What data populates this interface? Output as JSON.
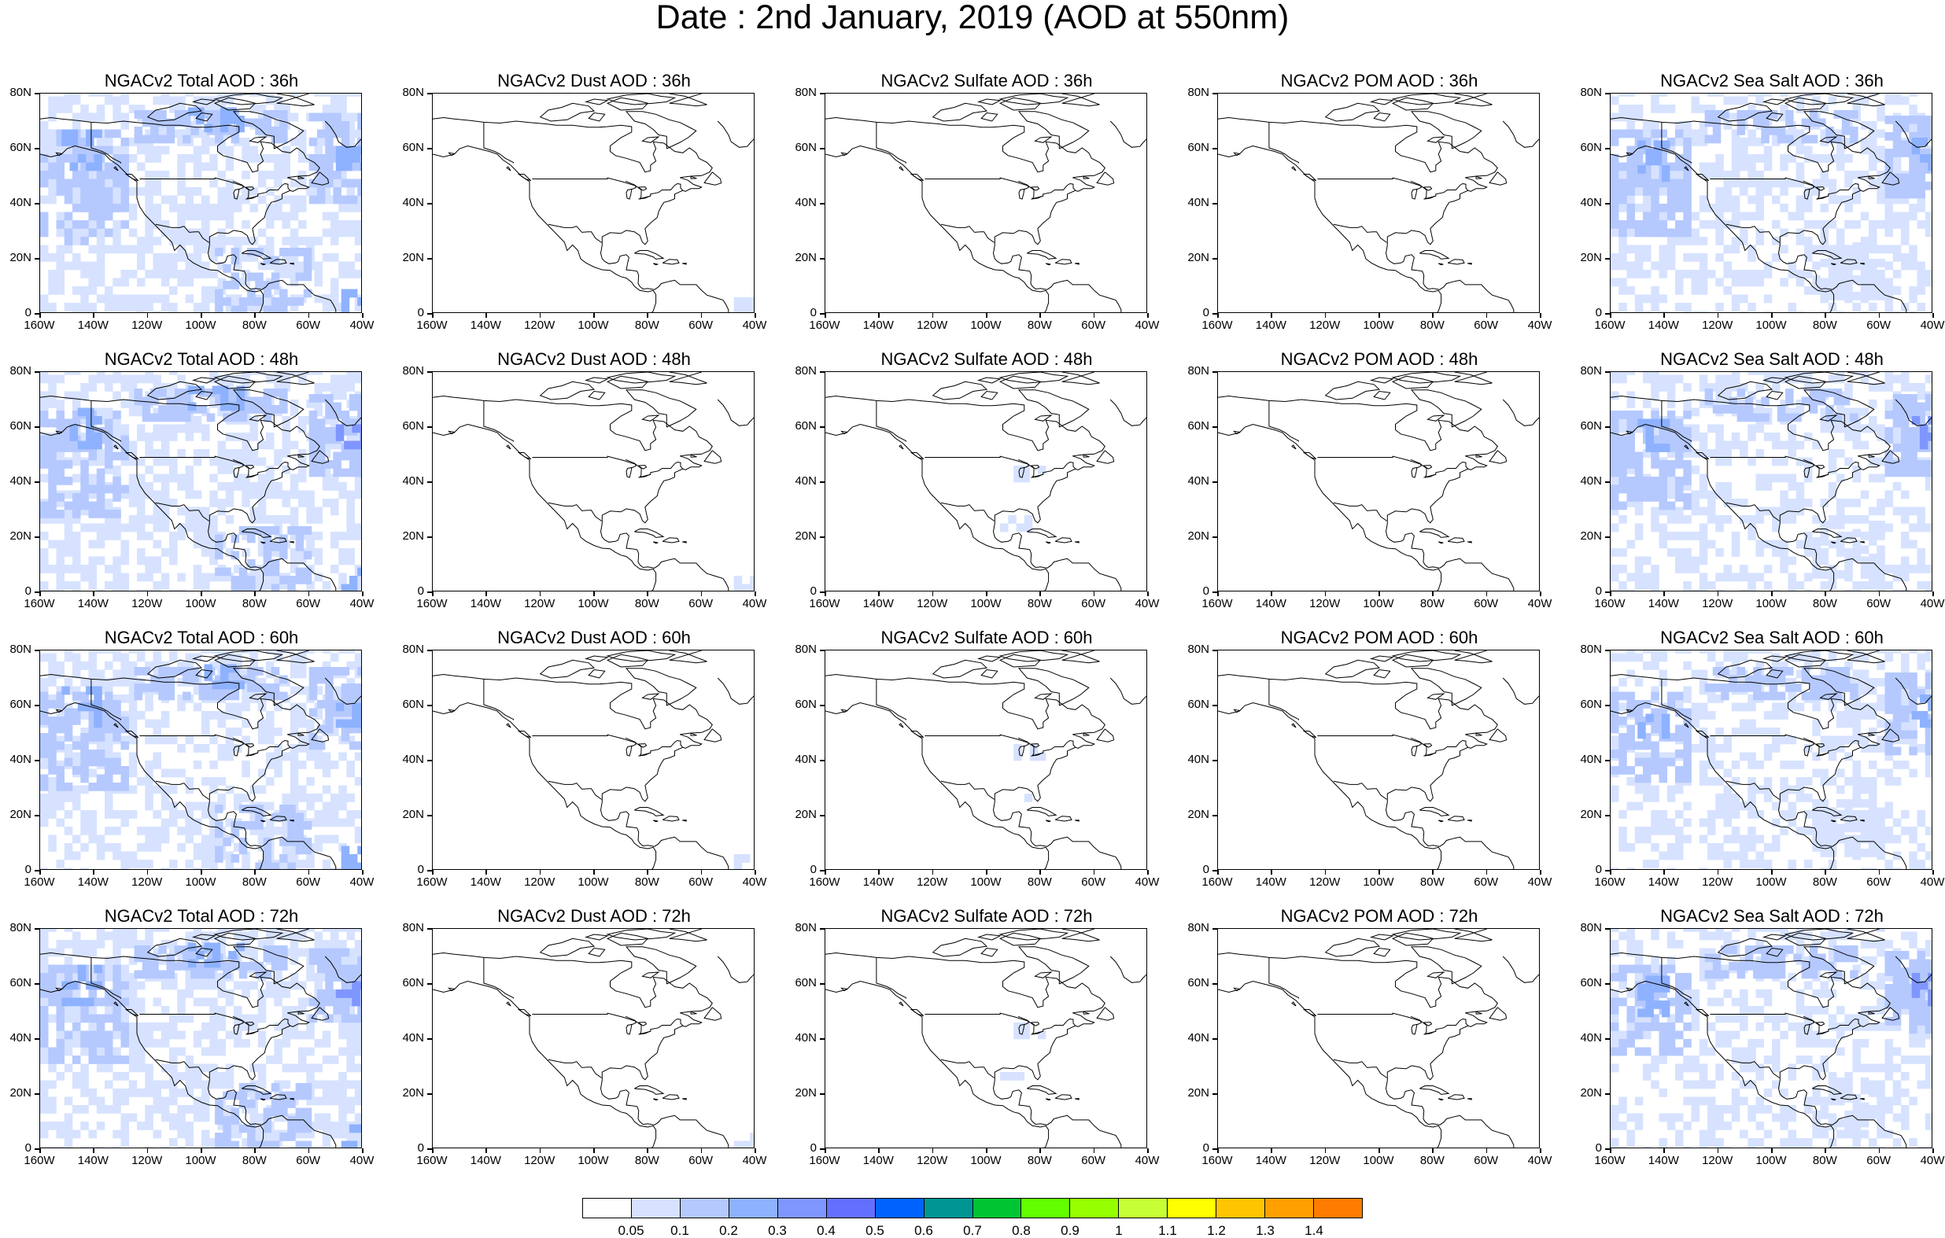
{
  "title": "Date : 2nd January, 2019 (AOD at 550nm)",
  "panel_titles": [
    [
      "NGACv2 Total AOD : 36h",
      "NGACv2 Dust AOD : 36h",
      "NGACv2 Sulfate AOD : 36h",
      "NGACv2 POM AOD : 36h",
      "NGACv2 Sea Salt AOD : 36h"
    ],
    [
      "NGACv2 Total AOD : 48h",
      "NGACv2 Dust AOD : 48h",
      "NGACv2 Sulfate AOD : 48h",
      "NGACv2 POM AOD : 48h",
      "NGACv2 Sea Salt AOD : 48h"
    ],
    [
      "NGACv2 Total AOD : 60h",
      "NGACv2 Dust AOD : 60h",
      "NGACv2 Sulfate AOD : 60h",
      "NGACv2 POM AOD : 60h",
      "NGACv2 Sea Salt AOD : 60h"
    ],
    [
      "NGACv2 Total AOD : 72h",
      "NGACv2 Dust AOD : 72h",
      "NGACv2 Sulfate AOD : 72h",
      "NGACv2 POM AOD : 72h",
      "NGACv2 Sea Salt  AOD : 72h"
    ]
  ],
  "species": [
    "Total",
    "Dust",
    "Sulfate",
    "POM",
    "Sea Salt"
  ],
  "forecast_hours": [
    "36h",
    "48h",
    "60h",
    "72h"
  ],
  "lat_ticks": [
    "80N",
    "60N",
    "40N",
    "20N",
    "0"
  ],
  "lon_ticks": [
    "160W",
    "140W",
    "120W",
    "100W",
    "80W",
    "60W",
    "40W"
  ],
  "colorbar": {
    "labels": [
      "0.05",
      "0.1",
      "0.2",
      "0.3",
      "0.4",
      "0.5",
      "0.6",
      "0.7",
      "0.8",
      "0.9",
      "1",
      "1.1",
      "1.2",
      "1.3",
      "1.4"
    ],
    "colors": [
      "#ffffff",
      "#d6e2ff",
      "#b5c9ff",
      "#8eb2ff",
      "#7f96ff",
      "#6370ff",
      "#0063ff",
      "#009696",
      "#00c633",
      "#63ff00",
      "#96ff00",
      "#c6ff33",
      "#ffff00",
      "#ffc600",
      "#ffa000",
      "#ff7c00",
      "#ff1900"
    ]
  }
}
